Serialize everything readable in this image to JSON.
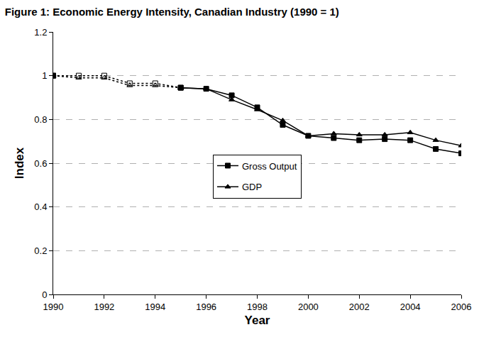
{
  "chart_data": {
    "type": "line",
    "title": "Figure 1: Economic Energy Intensity, Canadian Industry (1990 = 1)",
    "x_label": "Year",
    "y_label": "Index",
    "x": [
      1990,
      1991,
      1992,
      1993,
      1994,
      1995,
      1996,
      1997,
      1998,
      1999,
      2000,
      2001,
      2002,
      2003,
      2004,
      2005,
      2006
    ],
    "series": [
      {
        "name": "Gross Output",
        "color": "#000000",
        "marker": "square",
        "line_style": "solid",
        "values": [
          1.0,
          null,
          null,
          null,
          null,
          0.945,
          0.94,
          0.91,
          0.855,
          0.775,
          0.725,
          0.715,
          0.705,
          0.71,
          0.705,
          0.665,
          0.645
        ]
      },
      {
        "name": "GDP",
        "color": "#000000",
        "marker": "triangle",
        "line_style": "solid",
        "values": [
          1.0,
          null,
          null,
          null,
          null,
          0.945,
          0.94,
          0.89,
          0.845,
          0.795,
          0.725,
          0.735,
          0.73,
          0.73,
          0.74,
          0.705,
          0.68
        ]
      },
      {
        "name": "Gross Output",
        "color": "#000000",
        "marker": "square-open",
        "line_style": "dot",
        "values": [
          1.0,
          1.0,
          1.0,
          0.965,
          0.965,
          0.945,
          null,
          null,
          null,
          null,
          null,
          null,
          null,
          null,
          null,
          null,
          null
        ]
      },
      {
        "name": "GDP",
        "color": "#000000",
        "marker": "triangle-open",
        "line_style": "dot",
        "values": [
          1.0,
          0.99,
          0.99,
          0.955,
          0.955,
          0.945,
          null,
          null,
          null,
          null,
          null,
          null,
          null,
          null,
          null,
          null,
          null
        ]
      }
    ],
    "xlim": [
      1990,
      2006
    ],
    "xticks": [
      1990,
      1992,
      1994,
      1996,
      1998,
      2000,
      2002,
      2004,
      2006
    ],
    "ylim": [
      0,
      1.2
    ],
    "yticks": [
      0,
      0.2,
      0.4,
      0.6,
      0.8,
      1,
      1.2
    ],
    "grid": true,
    "legend": "center"
  }
}
